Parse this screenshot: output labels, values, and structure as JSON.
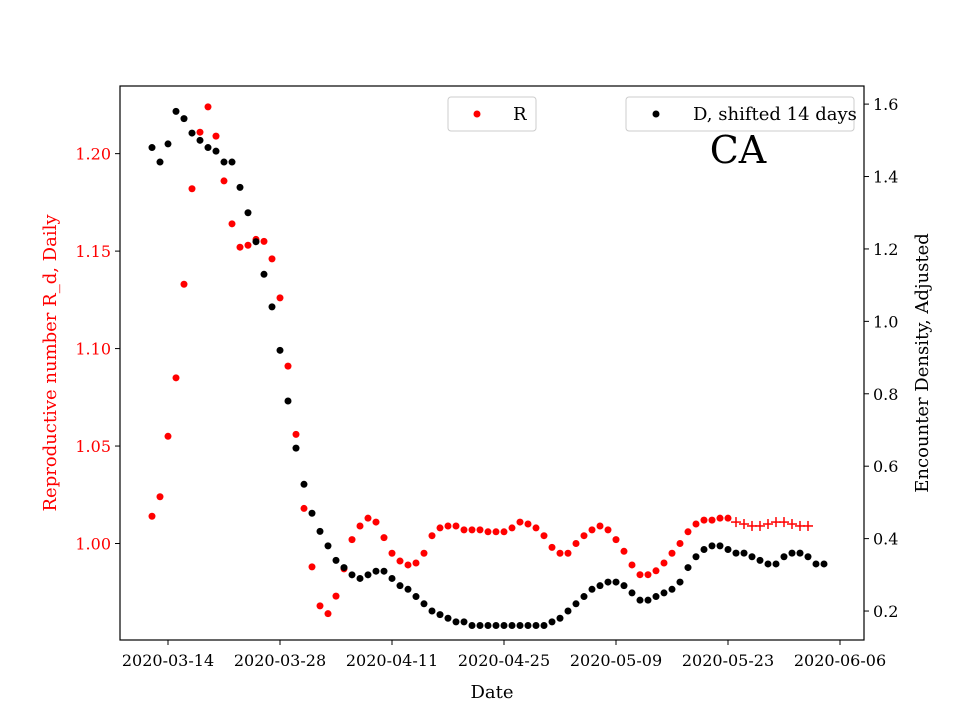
{
  "chart_data": {
    "type": "scatter",
    "annotation": "CA",
    "xlabel": "Date",
    "ylabel_left": "Reproductive number R_d, Daily",
    "ylabel_right": "Encounter Density, Adjusted",
    "x_ticks": [
      "2020-03-14",
      "2020-03-28",
      "2020-04-11",
      "2020-04-25",
      "2020-05-09",
      "2020-05-23",
      "2020-06-06"
    ],
    "y_left_ticks": [
      "1.00",
      "1.05",
      "1.10",
      "1.15",
      "1.20"
    ],
    "y_right_ticks": [
      "0.2",
      "0.4",
      "0.6",
      "0.8",
      "1.0",
      "1.2",
      "1.4",
      "1.6"
    ],
    "xlim": [
      "2020-03-08",
      "2020-06-09"
    ],
    "ylim_left": [
      0.9505,
      1.2347
    ],
    "ylim_right": [
      0.12,
      1.65
    ],
    "x_start_date": "2020-03-12",
    "colors": {
      "R": "#ff0000",
      "D": "#000000",
      "left_axis": "#ff0000",
      "right_axis": "#000000"
    },
    "legend": [
      {
        "label": "R",
        "position": "top-center"
      },
      {
        "label": "D, shifted 14 days",
        "position": "top-right"
      }
    ],
    "series": [
      {
        "name": "R",
        "axis": "left",
        "marker": "dot",
        "values": [
          1.014,
          1.024,
          1.055,
          1.085,
          1.133,
          1.182,
          1.211,
          1.224,
          1.209,
          1.186,
          1.164,
          1.152,
          1.153,
          1.156,
          1.155,
          1.146,
          1.126,
          1.091,
          1.056,
          1.018,
          0.988,
          0.968,
          0.964,
          0.973,
          0.987,
          1.002,
          1.009,
          1.013,
          1.011,
          1.003,
          0.995,
          0.991,
          0.989,
          0.99,
          0.995,
          1.004,
          1.008,
          1.009,
          1.009,
          1.007,
          1.007,
          1.007,
          1.006,
          1.006,
          1.006,
          1.008,
          1.011,
          1.01,
          1.008,
          1.004,
          0.998,
          0.995,
          0.995,
          1.0,
          1.004,
          1.007,
          1.009,
          1.007,
          1.002,
          0.996,
          0.989,
          0.984,
          0.984,
          0.986,
          0.99,
          0.995,
          1.0,
          1.006,
          1.01,
          1.012,
          1.012,
          1.013,
          1.013
        ]
      },
      {
        "name": "R",
        "axis": "left",
        "marker": "plus",
        "start_index": 73,
        "values": [
          1.011,
          1.01,
          1.009,
          1.009,
          1.01,
          1.011,
          1.011,
          1.01,
          1.009,
          1.009
        ]
      },
      {
        "name": "D, shifted 14 days",
        "axis": "right",
        "marker": "dot",
        "values": [
          1.48,
          1.44,
          1.49,
          1.58,
          1.56,
          1.52,
          1.5,
          1.48,
          1.47,
          1.44,
          1.44,
          1.37,
          1.3,
          1.22,
          1.13,
          1.04,
          0.92,
          0.78,
          0.65,
          0.55,
          0.47,
          0.42,
          0.38,
          0.34,
          0.32,
          0.3,
          0.29,
          0.3,
          0.31,
          0.31,
          0.29,
          0.27,
          0.26,
          0.24,
          0.22,
          0.2,
          0.19,
          0.18,
          0.17,
          0.17,
          0.16,
          0.16,
          0.16,
          0.16,
          0.16,
          0.16,
          0.16,
          0.16,
          0.16,
          0.16,
          0.17,
          0.18,
          0.2,
          0.22,
          0.24,
          0.26,
          0.27,
          0.28,
          0.28,
          0.27,
          0.25,
          0.23,
          0.23,
          0.24,
          0.25,
          0.26,
          0.28,
          0.32,
          0.35,
          0.37,
          0.38,
          0.38,
          0.37,
          0.36,
          0.36,
          0.35,
          0.34,
          0.33,
          0.33,
          0.35,
          0.36,
          0.36,
          0.35,
          0.33,
          0.33
        ]
      }
    ]
  }
}
